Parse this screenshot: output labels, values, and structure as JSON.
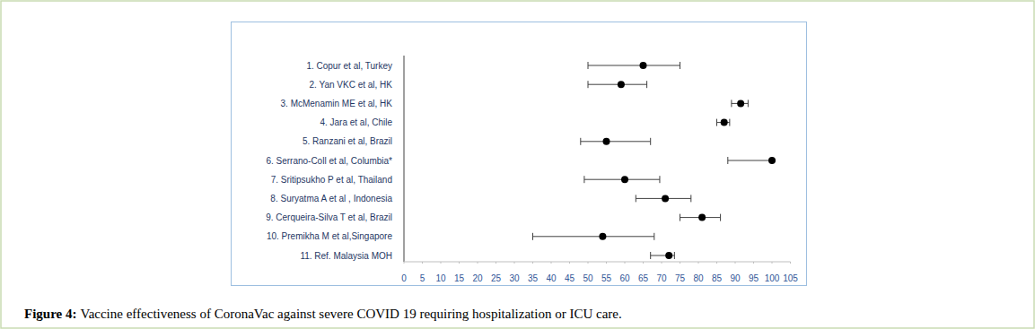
{
  "chart_data": {
    "type": "forest",
    "orientation": "horizontal",
    "caption_label": "Figure 4:",
    "caption": "Vaccine effectiveness of CoronaVac against severe COVID 19 requiring hospitalization or ICU care.",
    "categories": [
      "1. Copur et al, Turkey",
      "2. Yan VKC et al, HK",
      "3. McMenamin ME et al, HK",
      "4. Jara et al, Chile",
      "5. Ranzani et al, Brazil",
      "6. Serrano-Coll et al, Columbia*",
      "7. Sritipsukho P et al, Thailand",
      "8. Suryatma A et al , Indonesia",
      "9. Cerqueira-Silva T et al, Brazil",
      "10. Premikha M et al,Singapore",
      "11. Ref. Malaysia MOH"
    ],
    "values": [
      65,
      59,
      91.5,
      87,
      55,
      100,
      60,
      71,
      81,
      54,
      72
    ],
    "ci_lower": [
      50,
      50,
      89,
      85,
      48,
      88,
      49,
      63,
      75,
      35,
      67
    ],
    "ci_upper": [
      75,
      66,
      93.5,
      88.5,
      67,
      100,
      69.5,
      78,
      86,
      68,
      73.5
    ],
    "color": "#000000",
    "marker": "circle",
    "xlim": [
      0,
      105
    ],
    "xticks": [
      0,
      5,
      10,
      15,
      20,
      25,
      30,
      35,
      40,
      45,
      50,
      55,
      60,
      65,
      70,
      75,
      80,
      85,
      90,
      95,
      100,
      105
    ],
    "grid": false
  }
}
